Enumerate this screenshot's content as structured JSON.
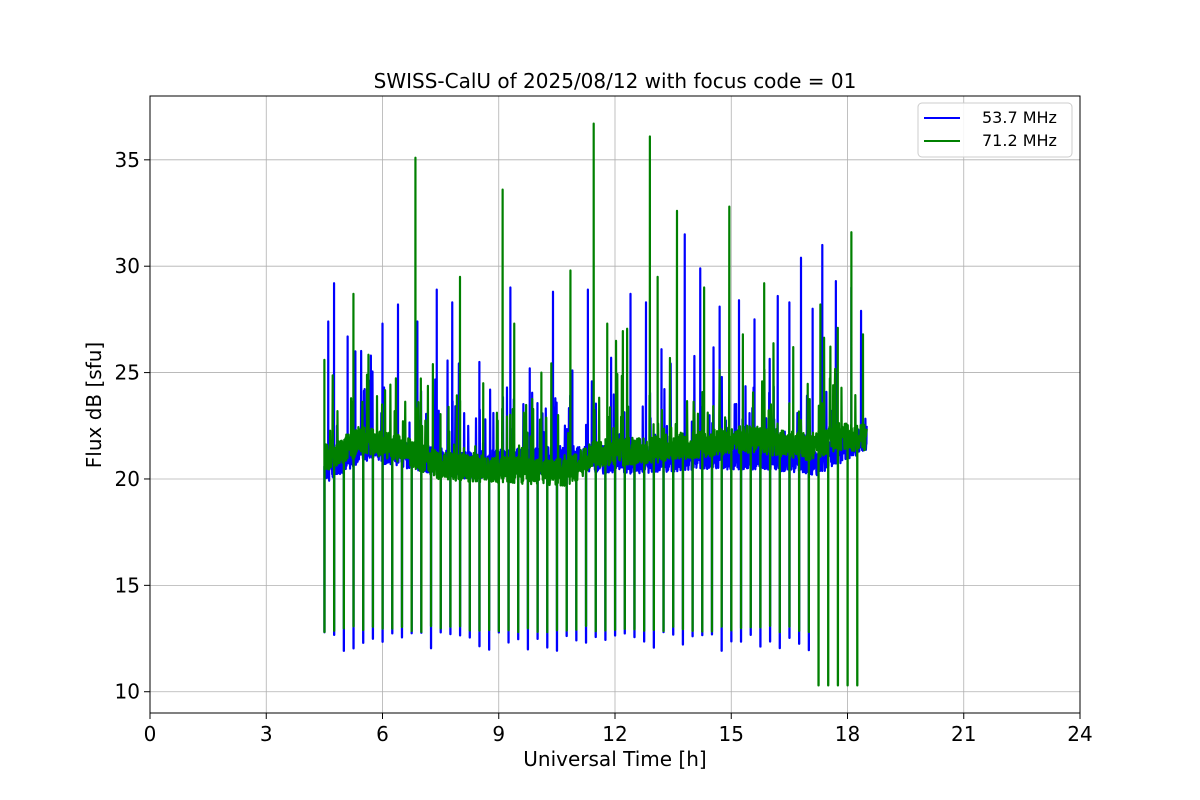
{
  "chart_data": {
    "type": "line",
    "title": "SWISS-CalU of 2025/08/12 with focus code = 01",
    "xlabel": "Universal Time [h]",
    "ylabel": "Flux dB [sfu]",
    "xlim": [
      0,
      24
    ],
    "ylim": [
      9,
      38
    ],
    "xticks": [
      0,
      3,
      6,
      9,
      12,
      15,
      18,
      21,
      24
    ],
    "yticks": [
      10,
      15,
      20,
      25,
      30,
      35
    ],
    "xtick_labels": [
      "0",
      "3",
      "6",
      "9",
      "12",
      "15",
      "18",
      "21",
      "24"
    ],
    "ytick_labels": [
      "10",
      "15",
      "20",
      "25",
      "30",
      "35"
    ],
    "grid": true,
    "legend_position": "top-right",
    "calibration_start_h": 4.5,
    "calibration_interval_h": 0.25,
    "series": [
      {
        "name": "53.7 MHz",
        "color": "#0000ff",
        "time_range": [
          4.5,
          18.5
        ],
        "baseline_segments": [
          [
            4.5,
            20.4
          ],
          [
            5.5,
            21.5
          ],
          [
            6.5,
            21.2
          ],
          [
            8.0,
            20.6
          ],
          [
            10.5,
            20.9
          ],
          [
            12.5,
            20.9
          ],
          [
            14.5,
            21.1
          ],
          [
            16.5,
            21.0
          ],
          [
            17.2,
            20.8
          ],
          [
            18.5,
            22.0
          ]
        ],
        "calibration_dip_min": 11.9,
        "calibration_dip_until_h": 17.0,
        "peaks": [
          [
            4.6,
            27.4
          ],
          [
            4.75,
            29.2
          ],
          [
            5.1,
            26.7
          ],
          [
            5.3,
            26.0
          ],
          [
            5.7,
            25.8
          ],
          [
            6.0,
            27.3
          ],
          [
            6.4,
            28.2
          ],
          [
            6.9,
            27.4
          ],
          [
            7.4,
            28.9
          ],
          [
            7.8,
            28.3
          ],
          [
            8.5,
            25.5
          ],
          [
            9.3,
            29.0
          ],
          [
            9.8,
            25.2
          ],
          [
            10.4,
            28.8
          ],
          [
            10.9,
            25.1
          ],
          [
            11.3,
            28.9
          ],
          [
            11.9,
            25.7
          ],
          [
            12.4,
            28.7
          ],
          [
            12.8,
            28.3
          ],
          [
            13.2,
            26.1
          ],
          [
            13.8,
            31.5
          ],
          [
            14.2,
            29.9
          ],
          [
            14.7,
            28.1
          ],
          [
            15.2,
            28.4
          ],
          [
            15.6,
            27.5
          ],
          [
            16.2,
            28.6
          ],
          [
            16.5,
            28.3
          ],
          [
            16.8,
            30.4
          ],
          [
            17.1,
            28.0
          ],
          [
            17.35,
            31.0
          ],
          [
            17.7,
            29.3
          ],
          [
            18.1,
            29.0
          ],
          [
            18.35,
            27.9
          ]
        ]
      },
      {
        "name": "71.2 MHz",
        "color": "#008000",
        "time_range": [
          4.5,
          18.5
        ],
        "baseline_segments": [
          [
            4.5,
            21.0
          ],
          [
            5.5,
            21.8
          ],
          [
            6.5,
            21.4
          ],
          [
            7.5,
            20.6
          ],
          [
            9.5,
            20.4
          ],
          [
            10.8,
            20.3
          ],
          [
            11.5,
            21.2
          ],
          [
            12.5,
            21.3
          ],
          [
            14.0,
            21.6
          ],
          [
            15.5,
            21.9
          ],
          [
            17.0,
            21.5
          ],
          [
            17.8,
            22.0
          ],
          [
            18.5,
            21.9
          ]
        ],
        "calibration_dip_min": 12.8,
        "late_dips": [
          [
            17.25,
            10.3
          ],
          [
            17.55,
            10.3
          ],
          [
            17.8,
            10.3
          ],
          [
            18.05,
            10.3
          ],
          [
            18.25,
            10.3
          ]
        ],
        "peaks": [
          [
            4.5,
            25.6
          ],
          [
            5.25,
            28.7
          ],
          [
            5.6,
            24.9
          ],
          [
            6.85,
            35.1
          ],
          [
            7.3,
            25.4
          ],
          [
            8.0,
            29.5
          ],
          [
            8.6,
            24.5
          ],
          [
            9.1,
            33.6
          ],
          [
            9.4,
            27.3
          ],
          [
            10.1,
            25.0
          ],
          [
            10.85,
            29.8
          ],
          [
            11.45,
            36.7
          ],
          [
            11.8,
            27.3
          ],
          [
            12.9,
            36.1
          ],
          [
            13.1,
            29.5
          ],
          [
            13.6,
            32.6
          ],
          [
            14.3,
            29.0
          ],
          [
            14.95,
            32.8
          ],
          [
            15.3,
            26.8
          ],
          [
            15.85,
            29.2
          ],
          [
            16.6,
            26.2
          ],
          [
            17.3,
            28.2
          ],
          [
            17.75,
            27.1
          ],
          [
            18.1,
            31.6
          ],
          [
            18.4,
            26.8
          ]
        ]
      }
    ]
  }
}
